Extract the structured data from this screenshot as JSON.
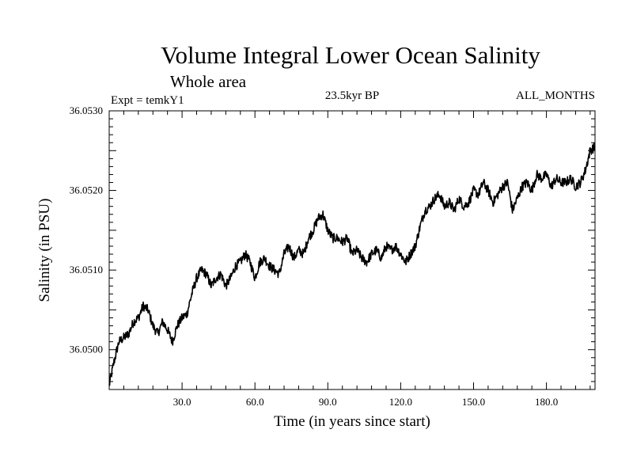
{
  "chart_data": {
    "type": "line",
    "title": "Volume Integral Lower Ocean Salinity",
    "subtitle": "Whole area",
    "header_left": "Expt = temkY1",
    "header_center": "23.5kyr BP",
    "header_right": "ALL_MONTHS",
    "xlabel": "Time (in years since start)",
    "ylabel": "Salinity (in PSU)",
    "xlim": [
      0,
      200
    ],
    "ylim": [
      36.0495,
      36.053
    ],
    "x_ticks": [
      30,
      60,
      90,
      120,
      150,
      180
    ],
    "x_tick_labels": [
      "30.0",
      "60.0",
      "90.0",
      "120.0",
      "150.0",
      "180.0"
    ],
    "y_ticks": [
      36.05,
      36.051,
      36.052,
      36.053
    ],
    "y_tick_labels": [
      "36.0500",
      "36.0510",
      "36.0520",
      "36.0530"
    ],
    "series": [
      {
        "name": "Salinity",
        "x": [
          0,
          2,
          4,
          6,
          8,
          10,
          12,
          14,
          16,
          18,
          20,
          22,
          24,
          26,
          28,
          30,
          32,
          34,
          36,
          38,
          40,
          42,
          44,
          46,
          48,
          50,
          52,
          54,
          56,
          58,
          60,
          62,
          64,
          66,
          68,
          70,
          72,
          74,
          76,
          78,
          80,
          82,
          84,
          86,
          88,
          90,
          92,
          94,
          96,
          98,
          100,
          102,
          104,
          106,
          108,
          110,
          112,
          114,
          116,
          118,
          120,
          122,
          124,
          126,
          128,
          130,
          132,
          134,
          136,
          138,
          140,
          142,
          144,
          146,
          148,
          150,
          152,
          154,
          156,
          158,
          160,
          162,
          164,
          166,
          168,
          170,
          172,
          174,
          176,
          178,
          180,
          182,
          184,
          186,
          188,
          190,
          192,
          194,
          196,
          198,
          200
        ],
        "values": [
          36.04955,
          36.04985,
          36.0501,
          36.05015,
          36.0502,
          36.05035,
          36.0504,
          36.05055,
          36.0505,
          36.0503,
          36.0502,
          36.05035,
          36.05025,
          36.0501,
          36.0503,
          36.0504,
          36.05045,
          36.0507,
          36.0509,
          36.051,
          36.05095,
          36.0508,
          36.0509,
          36.05095,
          36.0508,
          36.0509,
          36.05105,
          36.0511,
          36.0512,
          36.0511,
          36.0509,
          36.0511,
          36.05115,
          36.05105,
          36.051,
          36.05095,
          36.0512,
          36.0513,
          36.05115,
          36.05125,
          36.0512,
          36.0514,
          36.0515,
          36.05165,
          36.0517,
          36.0515,
          36.0514,
          36.0514,
          36.05135,
          36.0514,
          36.0512,
          36.05125,
          36.05115,
          36.0511,
          36.0512,
          36.05125,
          36.05115,
          36.0513,
          36.05125,
          36.0513,
          36.0512,
          36.0511,
          36.0512,
          36.0513,
          36.05155,
          36.05175,
          36.0518,
          36.0519,
          36.05195,
          36.0518,
          36.05185,
          36.05175,
          36.0519,
          36.0518,
          36.05185,
          36.052,
          36.05195,
          36.0521,
          36.052,
          36.05185,
          36.05195,
          36.05205,
          36.0521,
          36.05175,
          36.0519,
          36.05205,
          36.0521,
          36.052,
          36.0522,
          36.05215,
          36.0522,
          36.05205,
          36.05215,
          36.0521,
          36.0521,
          36.05215,
          36.05205,
          36.0521,
          36.05225,
          36.0525,
          36.05255
        ]
      }
    ]
  },
  "colors": {
    "line": "#000000",
    "axis": "#000000",
    "background": "#ffffff"
  }
}
